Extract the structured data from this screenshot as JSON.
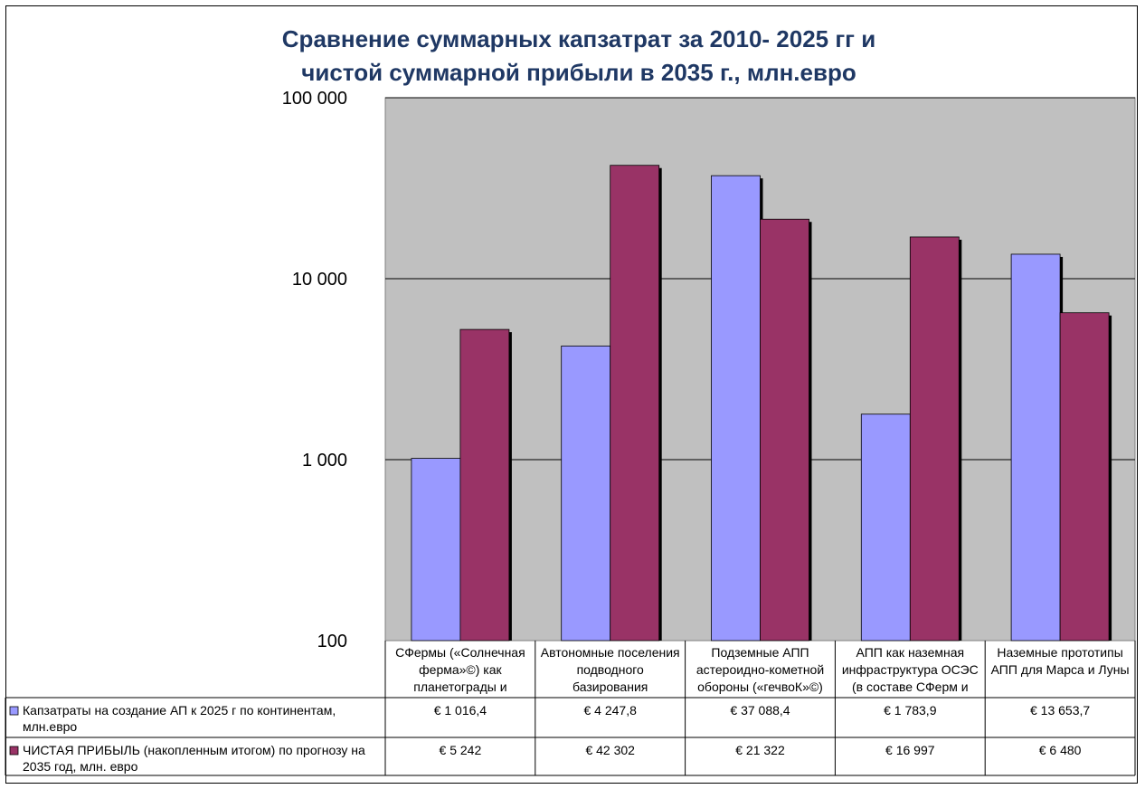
{
  "chart_data": {
    "type": "bar",
    "title": [
      "Сравнение суммарных капзатрат за 2010- 2025 гг и",
      "чистой суммарной прибыли в 2035 г., млн.евро"
    ],
    "y_scale": "log",
    "ylim": [
      100,
      100000
    ],
    "y_ticks": [
      100,
      1000,
      10000,
      100000
    ],
    "y_tick_labels": [
      "100",
      "1 000",
      "10 000",
      "100 000"
    ],
    "grid": true,
    "plot_background": "#c0c0c0",
    "categories": [
      [
        "СФермы («Солнечная",
        "ферма»©) как",
        "планетограды и"
      ],
      [
        "Автономные поселения",
        "подводного",
        "базирования"
      ],
      [
        "Подземные АПП",
        "астероидно-кометной",
        "обороны («гечвоК»©)"
      ],
      [
        "АПП как наземная",
        "инфраструктура ОСЭС",
        "(в составе СФерм и"
      ],
      [
        "Наземные прототипы",
        "АПП для Марса и Луны"
      ]
    ],
    "series": [
      {
        "name": [
          "Капзатраты на создание АП к 2025 г по континентам,",
          "млн.евро"
        ],
        "color": "#9999ff",
        "values": [
          1016.4,
          4247.8,
          37088.4,
          1783.9,
          13653.7
        ],
        "labels": [
          "€ 1 016,4",
          "€ 4 247,8",
          "€ 37 088,4",
          "€ 1 783,9",
          "€ 13 653,7"
        ]
      },
      {
        "name": [
          "ЧИСТАЯ ПРИБЫЛЬ (накопленным итогом) по прогнозу на",
          "2035 год, млн. евро"
        ],
        "color": "#993366",
        "values": [
          5242,
          42302,
          21322,
          16997,
          6480
        ],
        "labels": [
          "€ 5 242",
          "€ 42 302",
          "€ 21 322",
          "€ 16 997",
          "€ 6 480"
        ]
      }
    ]
  }
}
